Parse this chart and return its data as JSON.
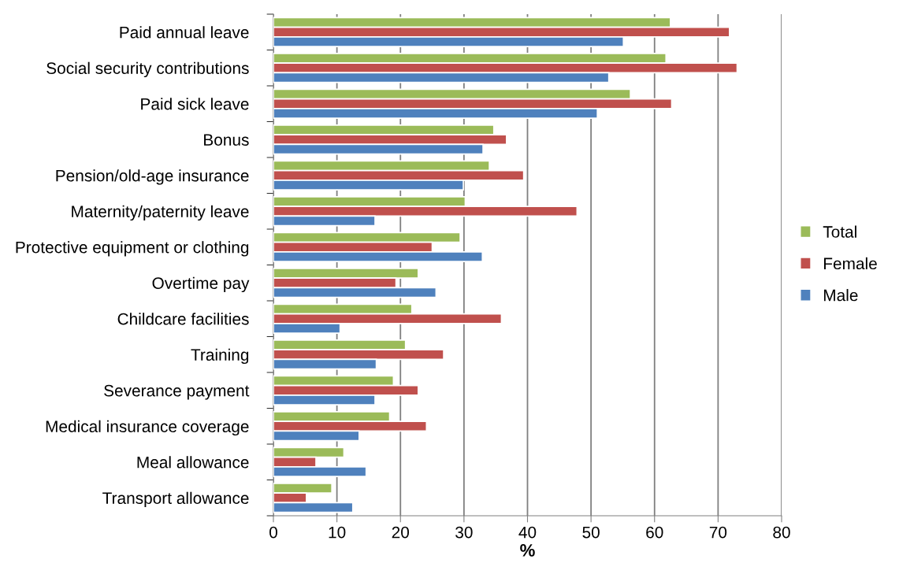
{
  "chart_data": {
    "type": "bar",
    "orientation": "horizontal",
    "xlabel": "%",
    "categories": [
      "Paid annual leave",
      "Social security contributions",
      "Paid sick leave",
      "Bonus",
      "Pension/old-age insurance",
      "Maternity/paternity leave",
      "Protective equipment or clothing",
      "Overtime pay",
      "Childcare facilities",
      "Training",
      "Severance payment",
      "Medical insurance coverage",
      "Meal allowance",
      "Transport allowance"
    ],
    "series": [
      {
        "name": "Total",
        "color": "#9bbb59",
        "values": [
          62.5,
          61.8,
          56.2,
          34.7,
          34.0,
          30.2,
          29.4,
          22.8,
          21.8,
          20.8,
          18.9,
          18.3,
          11.1,
          9.2
        ]
      },
      {
        "name": "Female",
        "color": "#c0504d",
        "values": [
          71.8,
          73.0,
          62.7,
          36.7,
          39.4,
          47.8,
          25.0,
          19.3,
          35.9,
          26.8,
          22.8,
          24.1,
          6.7,
          5.2
        ]
      },
      {
        "name": "Male",
        "color": "#4f81bd",
        "values": [
          55.1,
          52.8,
          51.0,
          33.0,
          29.9,
          16.0,
          32.9,
          25.6,
          10.5,
          16.2,
          16.0,
          13.5,
          14.6,
          12.5
        ]
      }
    ],
    "xlim": [
      0,
      80
    ],
    "xticks": [
      0,
      10,
      20,
      30,
      40,
      50,
      60,
      70,
      80
    ],
    "grid": "x",
    "legend": "right"
  }
}
